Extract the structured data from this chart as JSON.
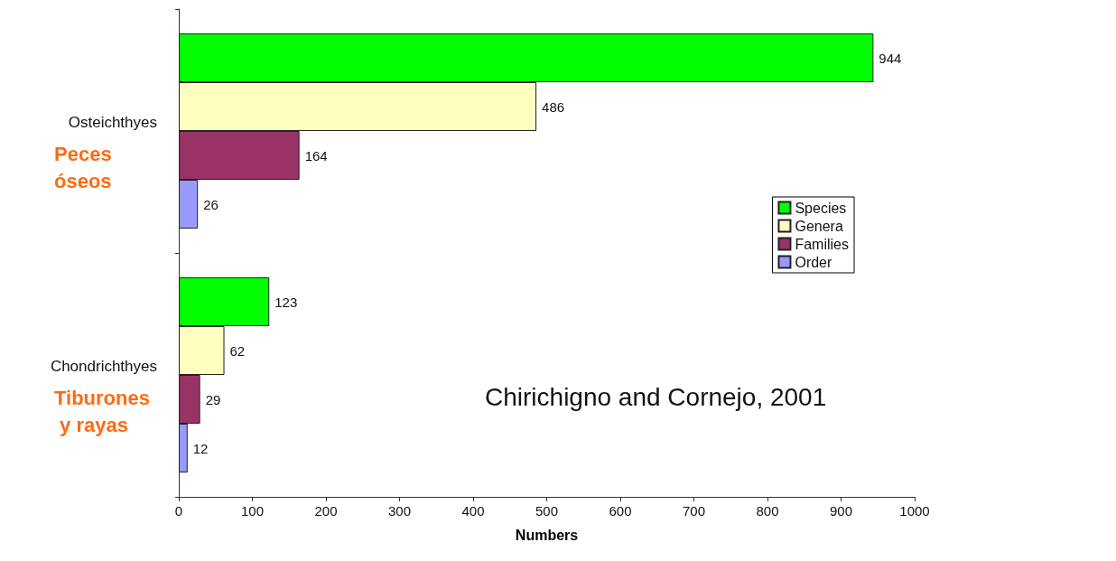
{
  "chart_data": {
    "type": "bar",
    "orientation": "horizontal",
    "xlabel": "Numbers",
    "categories": [
      "Osteichthyes",
      "Chondrichthyes"
    ],
    "series": [
      {
        "name": "Species",
        "color": "#00ff00",
        "values": [
          944,
          123
        ]
      },
      {
        "name": "Genera",
        "color": "#ffffc0",
        "values": [
          486,
          62
        ]
      },
      {
        "name": "Families",
        "color": "#993366",
        "values": [
          164,
          29
        ]
      },
      {
        "name": "Order",
        "color": "#9999ff",
        "values": [
          26,
          12
        ]
      }
    ],
    "xlim": [
      0,
      1000
    ],
    "xticks": [
      0,
      100,
      200,
      300,
      400,
      500,
      600,
      700,
      800,
      900,
      1000
    ],
    "data_labels": true,
    "grid": false,
    "legend": "right",
    "annotations": [
      "Peces óseos",
      "Tiburones y rayas",
      "Chirichigno and Cornejo, 2001"
    ]
  }
}
